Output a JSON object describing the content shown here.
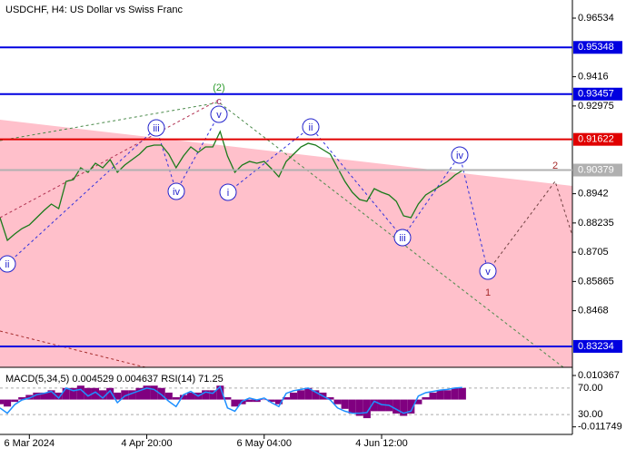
{
  "chart_data": {
    "type": "line",
    "title": "USDCHF, H4:  US Dollar vs Swiss Franc",
    "color": "#1a7a1a",
    "values": [
      0.88451,
      0.87533,
      0.8779,
      0.8801,
      0.88157,
      0.88451,
      0.88745,
      0.89002,
      0.88819,
      0.89921,
      0.89994,
      0.90472,
      0.90288,
      0.90656,
      0.90472,
      0.90803,
      0.90288,
      0.90582,
      0.90803,
      0.91023,
      0.91317,
      0.9139,
      0.9139,
      0.91023,
      0.90472,
      0.9095,
      0.91317,
      0.91096,
      0.91317,
      0.91317,
      0.91941,
      0.9095,
      0.90288,
      0.90582,
      0.90729,
      0.90656,
      0.90729,
      0.90435,
      0.90104,
      0.90729,
      0.91023,
      0.91317,
      0.91464,
      0.9139,
      0.91207,
      0.91023,
      0.90472,
      0.89921,
      0.8948,
      0.89186,
      0.89113,
      0.89627,
      0.8948,
      0.8937,
      0.89113,
      0.88525,
      0.88451,
      0.89002,
      0.8937,
      0.89553,
      0.89737,
      0.89921,
      0.90178,
      0.90362
    ],
    "xlim": [
      0,
      78
    ],
    "xticks": [
      {
        "value": 4,
        "label": "6 Mar 2024"
      },
      {
        "value": 20,
        "label": "4 Apr 20:00"
      },
      {
        "value": 36,
        "label": "6 May 04:00"
      },
      {
        "value": 52,
        "label": "4 Jun 12:00"
      }
    ],
    "ylim": [
      0.82387,
      0.97269
    ],
    "yticks": [
      0.96534,
      0.9416,
      0.92975,
      0.8942,
      0.88235,
      0.8705,
      0.85865,
      0.8468
    ],
    "levels": [
      {
        "value": 0.95348,
        "color": "#0000e0"
      },
      {
        "value": 0.93457,
        "color": "#0000e0"
      },
      {
        "value": 0.91622,
        "color": "#e00000"
      },
      {
        "value": 0.90379,
        "color": "#b0b0b0"
      },
      {
        "value": 0.83234,
        "color": "#0000e0"
      }
    ],
    "wave_labels": [
      {
        "text": "ii",
        "color": "#2222cc",
        "circled": true
      },
      {
        "text": "iii",
        "color": "#2222cc",
        "circled": true
      },
      {
        "text": "iv",
        "color": "#2222cc",
        "circled": true
      },
      {
        "text": "v",
        "color": "#2222cc",
        "circled": true
      },
      {
        "text": "i",
        "color": "#2222cc",
        "circled": true
      },
      {
        "text": "ii",
        "color": "#2222cc",
        "circled": true
      },
      {
        "text": "iii",
        "color": "#2222cc",
        "circled": true
      },
      {
        "text": "iv",
        "color": "#2222cc",
        "circled": true
      },
      {
        "text": "v",
        "color": "#2222cc",
        "circled": true
      },
      {
        "text": "(2)",
        "color": "#2a9a2a",
        "circled": false
      },
      {
        "text": "c",
        "color": "#a0306a",
        "circled": false
      },
      {
        "text": "1",
        "color": "#a52a2a",
        "circled": false
      },
      {
        "text": "2",
        "color": "#a52a2a",
        "circled": false
      }
    ],
    "indicator": {
      "title": "MACD(5,34,5) 0.004529 0.004637 RSI(14) 71.25",
      "macd": {
        "color": "#800080",
        "ylim": [
          -0.015,
          0.0135
        ],
        "yticks": [
          0.010367,
          -0.011749
        ],
        "values": [
          -0.002,
          -0.003,
          -0.001,
          0.001,
          0.002,
          0.003,
          0.003,
          0.004,
          0.003,
          0.005,
          0.005,
          0.006,
          0.005,
          0.005,
          0.004,
          0.005,
          0.003,
          0.004,
          0.004,
          0.005,
          0.006,
          0.006,
          0.005,
          0.003,
          0.001,
          0.002,
          0.003,
          0.003,
          0.004,
          0.004,
          0.006,
          0.001,
          -0.003,
          -0.002,
          -0.001,
          -0.001,
          0,
          -0.001,
          -0.002,
          0.001,
          0.003,
          0.004,
          0.005,
          0.004,
          0.003,
          0.001,
          -0.002,
          -0.004,
          -0.006,
          -0.007,
          -0.008,
          -0.005,
          -0.005,
          -0.005,
          -0.006,
          -0.007,
          -0.006,
          -0.002,
          0.001,
          0.003,
          0.004,
          0.004,
          0.005,
          0.005
        ]
      },
      "rsi": {
        "color": "#1e90ff",
        "ylim": [
          0,
          100
        ],
        "yticks": [
          {
            "value": 70,
            "label": "70.00"
          },
          {
            "value": 30,
            "label": "30.00"
          }
        ],
        "values": [
          40,
          32,
          45,
          52,
          55,
          60,
          62,
          65,
          55,
          70,
          66,
          68,
          58,
          64,
          55,
          66,
          48,
          58,
          62,
          66,
          70,
          68,
          60,
          50,
          42,
          60,
          65,
          58,
          64,
          62,
          72,
          40,
          35,
          50,
          55,
          52,
          55,
          48,
          42,
          62,
          66,
          68,
          70,
          64,
          58,
          52,
          40,
          35,
          32,
          32,
          33,
          50,
          45,
          44,
          38,
          32,
          35,
          58,
          63,
          65,
          67,
          68,
          70,
          71
        ]
      }
    }
  }
}
